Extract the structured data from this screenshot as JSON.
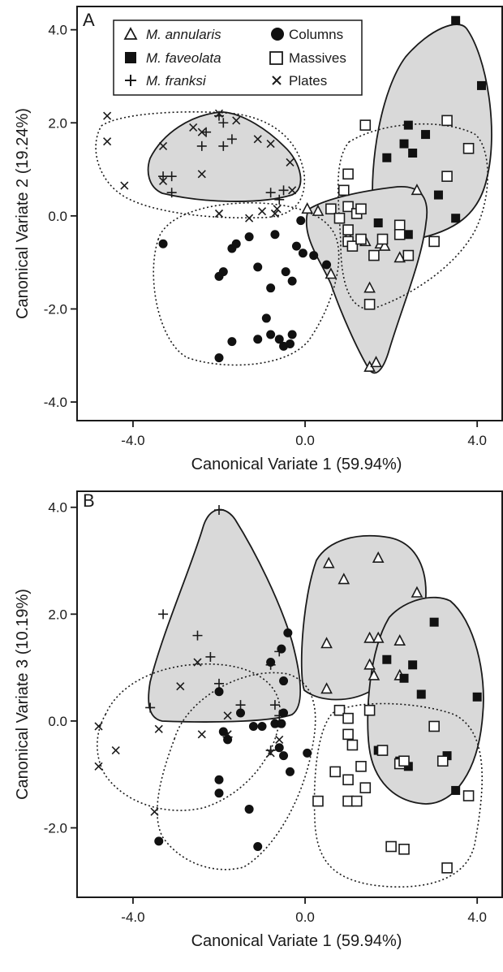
{
  "figure": {
    "panels_note": ""
  },
  "legend": {
    "entries": [
      {
        "symbol": "open-triangle",
        "label": "M. annularis",
        "italic": true
      },
      {
        "symbol": "filled-circle",
        "label": "Columns",
        "italic": false
      },
      {
        "symbol": "filled-square",
        "label": "M. faveolata",
        "italic": true
      },
      {
        "symbol": "open-square",
        "label": "Massives",
        "italic": false
      },
      {
        "symbol": "plus",
        "label": "M. franksi",
        "italic": true
      },
      {
        "symbol": "cross",
        "label": "Plates",
        "italic": false
      }
    ]
  },
  "chart_data": [
    {
      "type": "scatter",
      "panel_label": "A",
      "xlabel": "Canonical Variate 1 (59.94%)",
      "ylabel": "Canonical Variate 2 (19.24%)",
      "xlim": [
        -5.3,
        4.6
      ],
      "ylim": [
        -4.4,
        4.5
      ],
      "xticks": [
        "-4.0",
        "0.0",
        "4.0"
      ],
      "xtick_values": [
        -4,
        0,
        4
      ],
      "yticks": [
        "4.0",
        "2.0",
        "0.0",
        "-2.0",
        "-4.0"
      ],
      "ytick_values": [
        4,
        2,
        0,
        -2,
        -4
      ],
      "grid": false,
      "legend_position": "top-left",
      "series": [
        {
          "name": "M. franksi",
          "marker": "plus",
          "points": [
            [
              -2.0,
              2.15
            ],
            [
              -1.9,
              2.0
            ],
            [
              -2.3,
              1.8
            ],
            [
              -2.4,
              1.5
            ],
            [
              -1.7,
              1.65
            ],
            [
              -1.9,
              1.5
            ],
            [
              -3.1,
              0.85
            ],
            [
              -3.3,
              0.85
            ],
            [
              -3.1,
              0.5
            ],
            [
              -0.8,
              0.5
            ],
            [
              -0.6,
              0.35
            ],
            [
              -0.5,
              0.55
            ]
          ]
        },
        {
          "name": "Plates",
          "marker": "cross",
          "points": [
            [
              -4.6,
              2.15
            ],
            [
              -4.6,
              1.6
            ],
            [
              -4.2,
              0.65
            ],
            [
              -3.3,
              1.5
            ],
            [
              -3.3,
              0.75
            ],
            [
              -2.6,
              1.9
            ],
            [
              -2.4,
              1.8
            ],
            [
              -2.4,
              0.9
            ],
            [
              -2.0,
              2.2
            ],
            [
              -1.6,
              2.05
            ],
            [
              -1.1,
              1.65
            ],
            [
              -0.8,
              1.55
            ],
            [
              -0.35,
              1.15
            ],
            [
              -0.3,
              0.55
            ],
            [
              -2.0,
              0.05
            ],
            [
              -1.3,
              -0.05
            ],
            [
              -1.0,
              0.1
            ],
            [
              -0.7,
              0.05
            ],
            [
              -0.65,
              0.15
            ]
          ]
        },
        {
          "name": "Columns",
          "marker": "filled-circle",
          "points": [
            [
              -3.3,
              -0.6
            ],
            [
              -2.0,
              -1.3
            ],
            [
              -1.9,
              -1.2
            ],
            [
              -1.7,
              -0.7
            ],
            [
              -1.6,
              -0.6
            ],
            [
              -1.3,
              -0.45
            ],
            [
              -0.7,
              -0.4
            ],
            [
              -1.1,
              -1.1
            ],
            [
              -0.8,
              -1.55
            ],
            [
              -0.2,
              -0.65
            ],
            [
              -0.45,
              -1.2
            ],
            [
              -0.3,
              -1.4
            ],
            [
              0.2,
              -0.85
            ],
            [
              0.5,
              -1.05
            ],
            [
              -0.9,
              -2.2
            ],
            [
              -0.8,
              -2.55
            ],
            [
              -0.6,
              -2.65
            ],
            [
              -0.5,
              -2.8
            ],
            [
              -0.35,
              -2.75
            ],
            [
              -0.3,
              -2.55
            ],
            [
              -1.1,
              -2.65
            ],
            [
              -1.7,
              -2.7
            ],
            [
              -2.0,
              -3.05
            ],
            [
              -0.1,
              -0.1
            ],
            [
              -0.05,
              -0.8
            ]
          ]
        },
        {
          "name": "M. annularis",
          "marker": "open-triangle",
          "points": [
            [
              0.05,
              0.15
            ],
            [
              0.3,
              0.1
            ],
            [
              2.6,
              0.55
            ],
            [
              1.0,
              -0.45
            ],
            [
              1.75,
              -0.6
            ],
            [
              1.85,
              -0.65
            ],
            [
              2.2,
              -0.9
            ],
            [
              0.6,
              -1.25
            ],
            [
              1.5,
              -1.55
            ],
            [
              1.5,
              -3.25
            ],
            [
              1.65,
              -3.15
            ],
            [
              1.4,
              -0.55
            ]
          ]
        },
        {
          "name": "M. faveolata",
          "marker": "filled-square",
          "points": [
            [
              3.5,
              4.2
            ],
            [
              4.1,
              2.8
            ],
            [
              2.4,
              1.95
            ],
            [
              2.8,
              1.75
            ],
            [
              2.3,
              1.55
            ],
            [
              2.5,
              1.35
            ],
            [
              1.9,
              1.25
            ],
            [
              3.1,
              0.45
            ],
            [
              3.5,
              -0.05
            ],
            [
              1.7,
              -0.15
            ],
            [
              2.2,
              -0.2
            ],
            [
              2.4,
              -0.4
            ]
          ]
        },
        {
          "name": "Massives",
          "marker": "open-square",
          "points": [
            [
              1.4,
              1.95
            ],
            [
              3.3,
              2.05
            ],
            [
              3.8,
              1.45
            ],
            [
              3.3,
              0.85
            ],
            [
              1.0,
              0.9
            ],
            [
              0.6,
              0.15
            ],
            [
              0.9,
              0.55
            ],
            [
              1.0,
              0.2
            ],
            [
              1.2,
              0.05
            ],
            [
              1.3,
              0.15
            ],
            [
              0.8,
              -0.05
            ],
            [
              1.0,
              -0.3
            ],
            [
              1.0,
              -0.55
            ],
            [
              1.1,
              -0.65
            ],
            [
              1.3,
              -0.5
            ],
            [
              1.6,
              -0.85
            ],
            [
              1.8,
              -0.5
            ],
            [
              2.2,
              -0.2
            ],
            [
              2.2,
              -0.4
            ],
            [
              2.4,
              -0.85
            ],
            [
              3.0,
              -0.55
            ],
            [
              1.5,
              -1.9
            ]
          ]
        }
      ]
    },
    {
      "type": "scatter",
      "panel_label": "B",
      "xlabel": "Canonical Variate 1 (59.94%)",
      "ylabel": "Canonical Variate 3 (10.19%)",
      "xlim": [
        -5.3,
        4.6
      ],
      "ylim": [
        -3.3,
        4.3
      ],
      "xticks": [
        "-4.0",
        "0.0",
        "4.0"
      ],
      "xtick_values": [
        -4,
        0,
        4
      ],
      "yticks": [
        "4.0",
        "2.0",
        "0.0",
        "-2.0"
      ],
      "ytick_values": [
        4,
        2,
        0,
        -2
      ],
      "grid": false,
      "series": [
        {
          "name": "M. franksi",
          "marker": "plus",
          "points": [
            [
              -2.0,
              3.95
            ],
            [
              -3.3,
              2.0
            ],
            [
              -2.5,
              1.6
            ],
            [
              -2.2,
              1.2
            ],
            [
              -2.0,
              0.7
            ],
            [
              -1.5,
              0.3
            ],
            [
              -3.6,
              0.25
            ],
            [
              -0.6,
              1.3
            ],
            [
              -0.8,
              1.05
            ],
            [
              -0.7,
              0.3
            ],
            [
              -0.6,
              0.1
            ],
            [
              -0.8,
              -0.55
            ],
            [
              -1.8,
              -0.3
            ]
          ]
        },
        {
          "name": "Plates",
          "marker": "cross",
          "points": [
            [
              -4.8,
              -0.1
            ],
            [
              -4.8,
              -0.85
            ],
            [
              -4.4,
              -0.55
            ],
            [
              -3.4,
              -0.15
            ],
            [
              -2.9,
              0.65
            ],
            [
              -2.5,
              1.1
            ],
            [
              -2.4,
              -0.25
            ],
            [
              -1.8,
              0.1
            ],
            [
              -1.8,
              -0.25
            ],
            [
              -0.8,
              -0.6
            ],
            [
              -0.6,
              -0.35
            ],
            [
              -3.5,
              -1.7
            ]
          ]
        },
        {
          "name": "Columns",
          "marker": "filled-circle",
          "points": [
            [
              -0.4,
              1.65
            ],
            [
              -0.8,
              1.1
            ],
            [
              -0.5,
              0.75
            ],
            [
              -0.5,
              0.15
            ],
            [
              -1.5,
              0.15
            ],
            [
              -1.2,
              -0.1
            ],
            [
              -1.0,
              -0.1
            ],
            [
              -0.7,
              -0.05
            ],
            [
              -0.55,
              -0.05
            ],
            [
              -1.9,
              -0.2
            ],
            [
              -1.8,
              -0.35
            ],
            [
              -0.6,
              -0.5
            ],
            [
              -0.5,
              -0.65
            ],
            [
              -0.35,
              -0.95
            ],
            [
              0.05,
              -0.6
            ],
            [
              -2.0,
              -1.1
            ],
            [
              -2.0,
              -1.35
            ],
            [
              -1.3,
              -1.65
            ],
            [
              -3.4,
              -2.25
            ],
            [
              -1.1,
              -2.35
            ],
            [
              -2.0,
              0.55
            ],
            [
              -0.55,
              1.35
            ]
          ]
        },
        {
          "name": "M. annularis",
          "marker": "open-triangle",
          "points": [
            [
              0.55,
              2.95
            ],
            [
              0.9,
              2.65
            ],
            [
              1.7,
              3.05
            ],
            [
              2.6,
              2.4
            ],
            [
              1.5,
              1.55
            ],
            [
              1.7,
              1.55
            ],
            [
              2.2,
              1.5
            ],
            [
              1.5,
              1.05
            ],
            [
              1.6,
              0.85
            ],
            [
              2.2,
              0.85
            ],
            [
              0.5,
              1.45
            ],
            [
              0.5,
              0.6
            ]
          ]
        },
        {
          "name": "M. faveolata",
          "marker": "filled-square",
          "points": [
            [
              3.0,
              1.85
            ],
            [
              1.9,
              1.15
            ],
            [
              2.5,
              1.05
            ],
            [
              2.3,
              0.8
            ],
            [
              2.7,
              0.5
            ],
            [
              4.0,
              0.45
            ],
            [
              1.7,
              -0.55
            ],
            [
              2.2,
              -0.75
            ],
            [
              2.4,
              -0.85
            ],
            [
              3.3,
              -0.65
            ],
            [
              3.5,
              -1.3
            ]
          ]
        },
        {
          "name": "Massives",
          "marker": "open-square",
          "points": [
            [
              0.8,
              0.2
            ],
            [
              1.0,
              0.05
            ],
            [
              1.5,
              0.2
            ],
            [
              1.0,
              -0.25
            ],
            [
              1.1,
              -0.45
            ],
            [
              3.0,
              -0.1
            ],
            [
              0.7,
              -0.95
            ],
            [
              1.0,
              -1.1
            ],
            [
              1.3,
              -0.85
            ],
            [
              1.8,
              -0.55
            ],
            [
              2.2,
              -0.8
            ],
            [
              2.3,
              -0.75
            ],
            [
              3.2,
              -0.75
            ],
            [
              3.8,
              -1.4
            ],
            [
              1.0,
              -1.5
            ],
            [
              1.2,
              -1.5
            ],
            [
              1.4,
              -1.25
            ],
            [
              0.3,
              -1.5
            ],
            [
              2.0,
              -2.35
            ],
            [
              2.3,
              -2.4
            ],
            [
              3.3,
              -2.75
            ]
          ]
        }
      ]
    }
  ]
}
